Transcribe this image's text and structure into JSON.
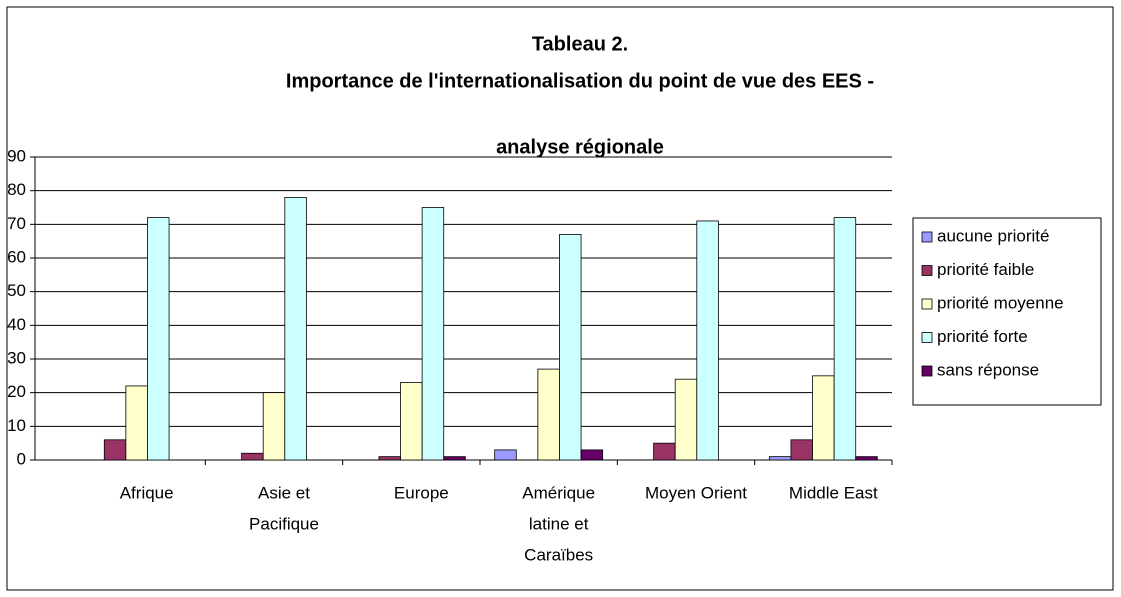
{
  "chart_data": {
    "type": "bar",
    "title": [
      "Tableau 2.",
      "Importance de l'internationalisation du point de vue des EES -",
      "analyse régionale"
    ],
    "categories": [
      [
        "Afrique"
      ],
      [
        "Asie et",
        "Pacifique"
      ],
      [
        "Europe"
      ],
      [
        "Amérique",
        "latine et",
        "Caraïbes"
      ],
      [
        "Moyen Orient"
      ],
      [
        "Middle East"
      ]
    ],
    "series": [
      {
        "name": "aucune priorité",
        "color": "#9999ff",
        "values": [
          0,
          0,
          0,
          3,
          0,
          1
        ]
      },
      {
        "name": "priorité faible",
        "color": "#993366",
        "values": [
          6,
          2,
          1,
          0,
          5,
          6
        ]
      },
      {
        "name": "priorité moyenne",
        "color": "#ffffcc",
        "values": [
          22,
          20,
          23,
          27,
          24,
          25
        ]
      },
      {
        "name": "priorité forte",
        "color": "#ccffff",
        "values": [
          72,
          78,
          75,
          67,
          71,
          72
        ]
      },
      {
        "name": "sans réponse",
        "color": "#660066",
        "values": [
          0,
          0,
          1,
          3,
          0,
          1
        ]
      }
    ],
    "ylim": [
      0,
      90
    ],
    "yticks": [
      0,
      10,
      20,
      30,
      40,
      50,
      60,
      70,
      80,
      90
    ],
    "grid": true,
    "legend": "right"
  }
}
